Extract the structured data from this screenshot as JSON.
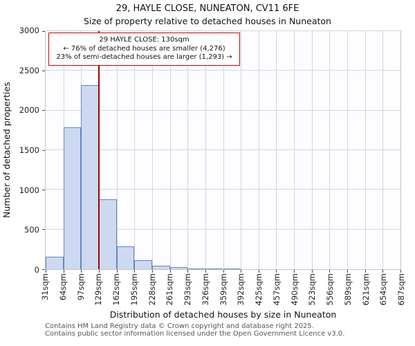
{
  "title": "29, HAYLE CLOSE, NUNEATON, CV11 6FE",
  "subtitle": "Size of property relative to detached houses in Nuneaton",
  "annotation": {
    "line1": "29 HAYLE CLOSE: 130sqm",
    "line2": "← 76% of detached houses are smaller (4,276)",
    "line3": "23% of semi-detached houses are larger (1,293) →"
  },
  "footer": {
    "line1": "Contains HM Land Registry data © Crown copyright and database right 2025.",
    "line2": "Contains public sector information licensed under the Open Government Licence v3.0."
  },
  "chart_data": {
    "type": "bar",
    "title": "29, HAYLE CLOSE, NUNEATON, CV11 6FE — Size of property relative to detached houses in Nuneaton",
    "xlabel": "Distribution of detached houses by size in Nuneaton",
    "ylabel": "Number of detached properties",
    "categories": [
      "31sqm",
      "64sqm",
      "97sqm",
      "129sqm",
      "162sqm",
      "195sqm",
      "228sqm",
      "261sqm",
      "293sqm",
      "326sqm",
      "359sqm",
      "392sqm",
      "425sqm",
      "457sqm",
      "490sqm",
      "523sqm",
      "556sqm",
      "589sqm",
      "621sqm",
      "654sqm",
      "687sqm"
    ],
    "values": [
      160,
      1790,
      2320,
      880,
      285,
      110,
      45,
      25,
      10,
      5,
      10,
      0,
      0,
      0,
      0,
      0,
      0,
      0,
      0,
      0
    ],
    "x_range_sqm": [
      31,
      687
    ],
    "ylim": [
      0,
      3000
    ],
    "yticks": [
      0,
      500,
      1000,
      1500,
      2000,
      2500,
      3000
    ],
    "grid": true,
    "legend": null,
    "marker": {
      "value_sqm": 130,
      "label": "130sqm",
      "color": "#a40000"
    },
    "colors": {
      "bar_fill": "#ccd9f0",
      "bar_border": "#6285c4",
      "grid": "#d0d5e4",
      "annotation_border": "#cc0000"
    }
  }
}
